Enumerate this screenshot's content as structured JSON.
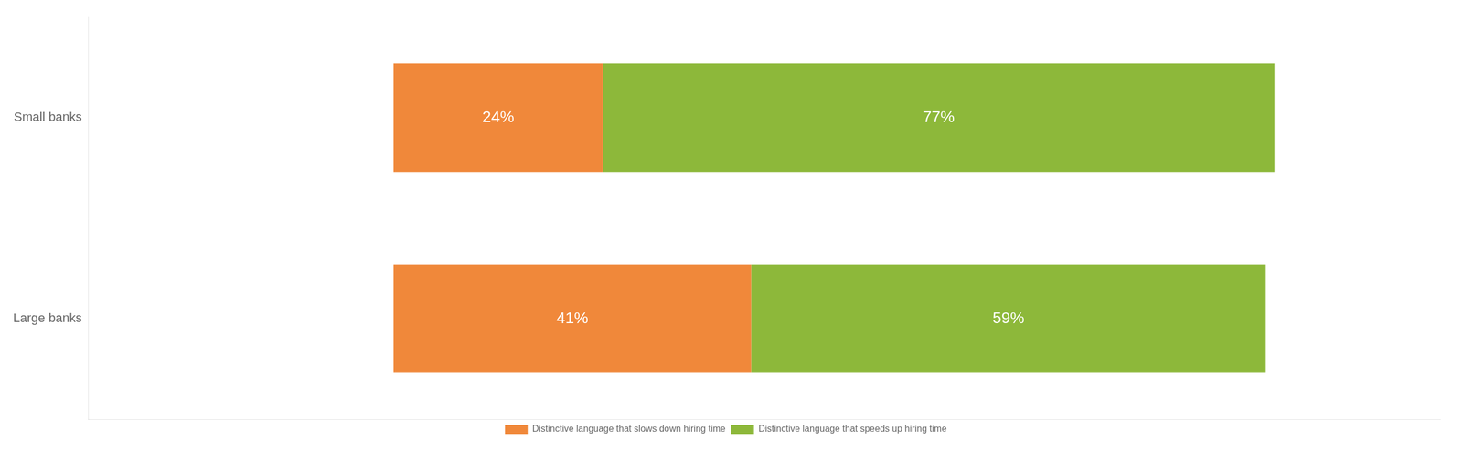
{
  "chart_data": {
    "type": "bar",
    "orientation": "horizontal",
    "stacked": true,
    "categories": [
      "Small banks",
      "Large banks"
    ],
    "series": [
      {
        "name": "Distinctive language that slows down hiring time",
        "color": "#F0883A",
        "values": [
          24,
          41
        ],
        "value_labels": [
          "24%",
          "41%"
        ]
      },
      {
        "name": "Distinctive language that speeds up hiring time",
        "color": "#8DB83A",
        "values": [
          77,
          59
        ],
        "value_labels": [
          "77%",
          "59%"
        ]
      }
    ],
    "xlim": [
      -35,
      120
    ],
    "data_labels": true,
    "tick_labels": "y",
    "grid": false,
    "legend": "bottom"
  }
}
